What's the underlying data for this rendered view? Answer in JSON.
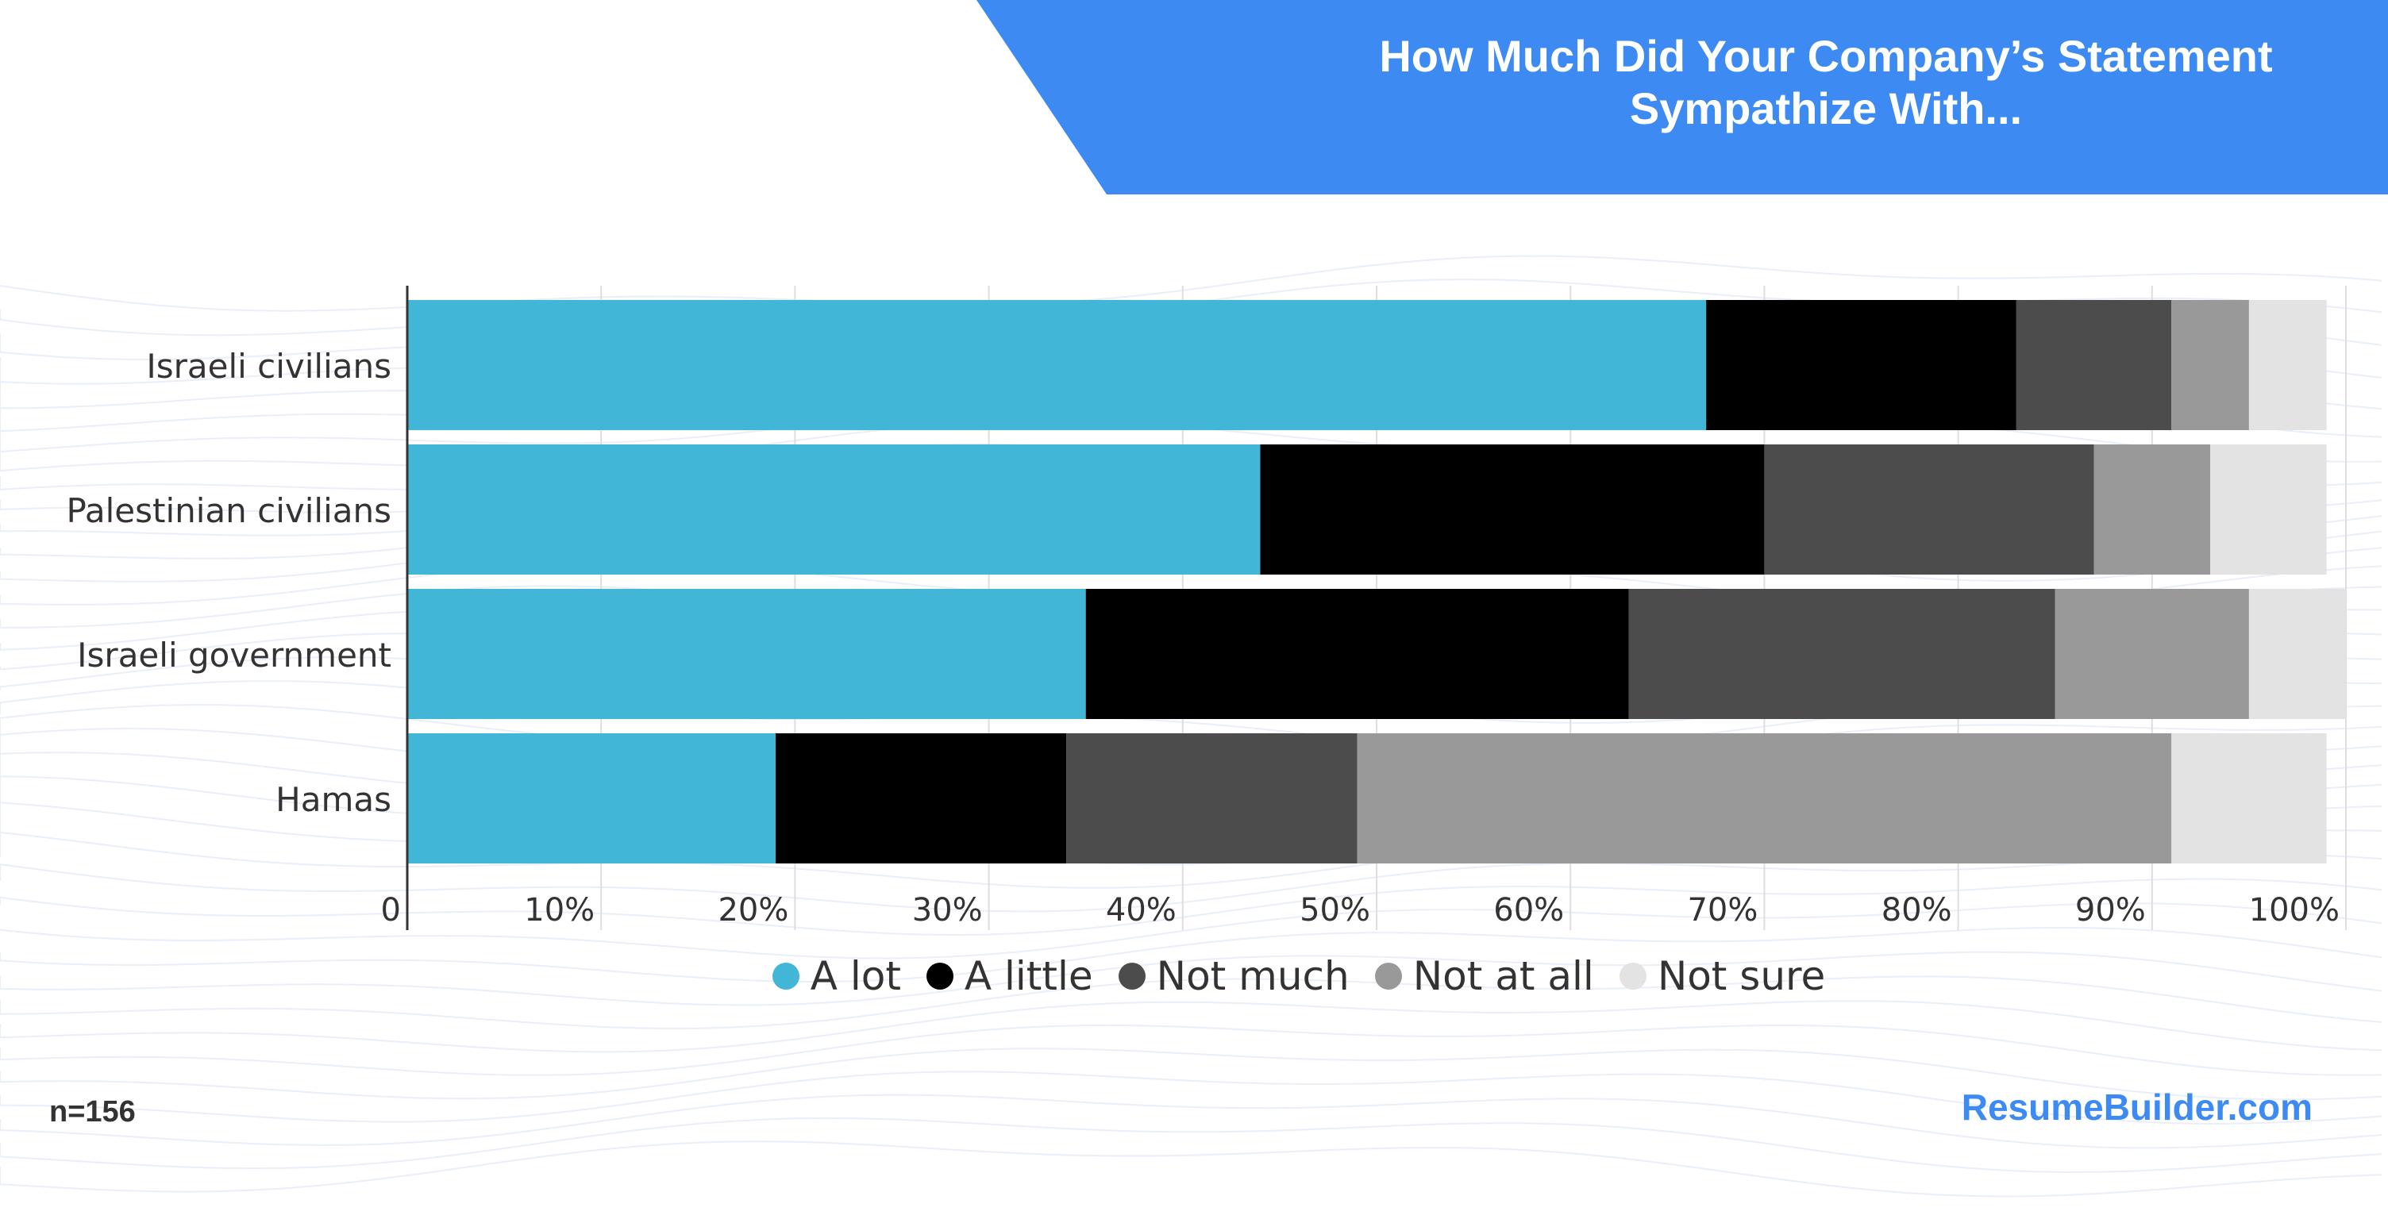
{
  "title": {
    "line1": "How Much Did Your Company’s Statement",
    "line2": "Sympathize With..."
  },
  "footer": {
    "sample_size": "n=156",
    "brand": "ResumeBuilder.com"
  },
  "colors": {
    "banner": "#3d8bf2",
    "a_lot": "#42b6d6",
    "a_little": "#000000",
    "not_much": "#4c4c4c",
    "not_at_all": "#999999",
    "not_sure": "#e3e3e3"
  },
  "chart_data": {
    "type": "bar",
    "orientation": "horizontal",
    "stacked": true,
    "title": "How Much Did Your Company’s Statement Sympathize With...",
    "categories": [
      "Israeli civilians",
      "Palestinian civilians",
      "Israeli government",
      "Hamas"
    ],
    "xlim": [
      0,
      100
    ],
    "xticks": [
      "0",
      "10%",
      "20%",
      "30%",
      "40%",
      "50%",
      "60%",
      "70%",
      "80%",
      "90%",
      "100%"
    ],
    "grid": true,
    "legend_position": "bottom",
    "series": [
      {
        "name": "A lot",
        "color": "#42b6d6",
        "values": [
          67,
          44,
          35,
          19
        ]
      },
      {
        "name": "A little",
        "color": "#000000",
        "values": [
          16,
          26,
          28,
          15
        ]
      },
      {
        "name": "Not much",
        "color": "#4c4c4c",
        "values": [
          8,
          17,
          22,
          15
        ]
      },
      {
        "name": "Not at all",
        "color": "#999999",
        "values": [
          4,
          6,
          10,
          42
        ]
      },
      {
        "name": "Not sure",
        "color": "#e3e3e3",
        "values": [
          4,
          6,
          5,
          8
        ]
      }
    ]
  }
}
